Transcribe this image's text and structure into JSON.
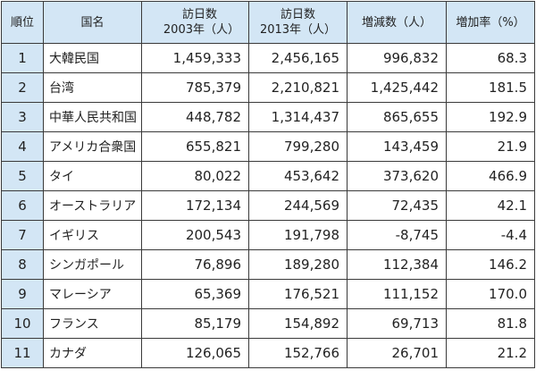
{
  "headers": {
    "rank": "順位",
    "country": "国名",
    "v2003_line1": "訪日数",
    "v2003_line2": "2003年（人）",
    "v2013_line1": "訪日数",
    "v2013_line2": "2013年（人）",
    "change": "増減数（人）",
    "rate": "増加率（%）"
  },
  "rows": [
    {
      "rank": "1",
      "country": "大韓民国",
      "v2003": "1,459,333",
      "v2013": "2,456,165",
      "change": "996,832",
      "rate": "68.3"
    },
    {
      "rank": "2",
      "country": "台湾",
      "v2003": "785,379",
      "v2013": "2,210,821",
      "change": "1,425,442",
      "rate": "181.5"
    },
    {
      "rank": "3",
      "country": "中華人民共和国",
      "v2003": "448,782",
      "v2013": "1,314,437",
      "change": "865,655",
      "rate": "192.9"
    },
    {
      "rank": "4",
      "country": "アメリカ合衆国",
      "v2003": "655,821",
      "v2013": "799,280",
      "change": "143,459",
      "rate": "21.9"
    },
    {
      "rank": "5",
      "country": "タイ",
      "v2003": "80,022",
      "v2013": "453,642",
      "change": "373,620",
      "rate": "466.9"
    },
    {
      "rank": "6",
      "country": "オーストラリア",
      "v2003": "172,134",
      "v2013": "244,569",
      "change": "72,435",
      "rate": "42.1"
    },
    {
      "rank": "7",
      "country": "イギリス",
      "v2003": "200,543",
      "v2013": "191,798",
      "change": "-8,745",
      "rate": "-4.4"
    },
    {
      "rank": "8",
      "country": "シンガポール",
      "v2003": "76,896",
      "v2013": "189,280",
      "change": "112,384",
      "rate": "146.2"
    },
    {
      "rank": "9",
      "country": "マレーシア",
      "v2003": "65,369",
      "v2013": "176,521",
      "change": "111,152",
      "rate": "170.0"
    },
    {
      "rank": "10",
      "country": "フランス",
      "v2003": "85,179",
      "v2013": "154,892",
      "change": "69,713",
      "rate": "81.8"
    },
    {
      "rank": "11",
      "country": "カナダ",
      "v2003": "126,065",
      "v2013": "152,766",
      "change": "26,701",
      "rate": "21.2"
    }
  ]
}
